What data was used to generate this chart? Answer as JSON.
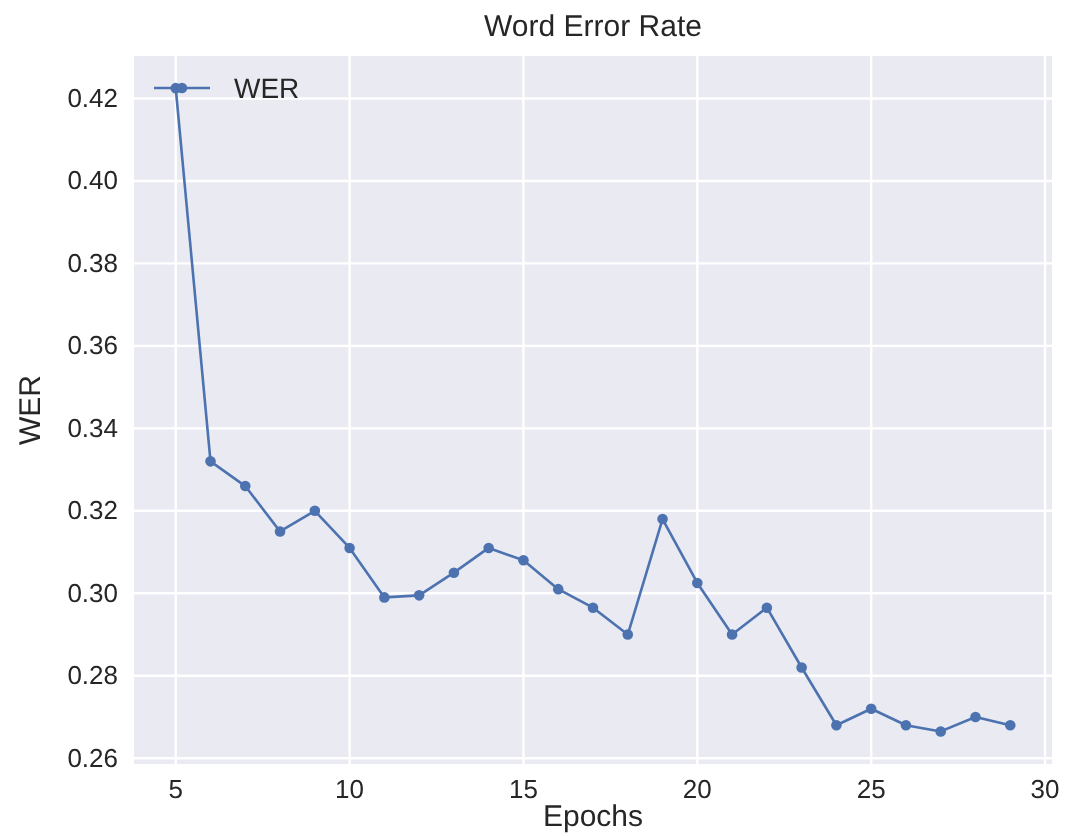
{
  "chart_data": {
    "type": "line",
    "title": "Word Error Rate",
    "xlabel": "Epochs",
    "ylabel": "WER",
    "x": [
      5,
      6,
      7,
      8,
      9,
      10,
      11,
      12,
      13,
      14,
      15,
      16,
      17,
      18,
      19,
      20,
      21,
      22,
      23,
      24,
      25,
      26,
      27,
      28,
      29
    ],
    "series": [
      {
        "name": "WER",
        "color": "#4c72b0",
        "values": [
          0.4225,
          0.332,
          0.326,
          0.315,
          0.32,
          0.311,
          0.299,
          0.2995,
          0.305,
          0.311,
          0.308,
          0.301,
          0.2965,
          0.29,
          0.318,
          0.3025,
          0.29,
          0.2965,
          0.282,
          0.268,
          0.272,
          0.268,
          0.2665,
          0.27,
          0.268
        ]
      }
    ],
    "xlim": [
      3.8,
      30.2
    ],
    "xticks": [
      5,
      10,
      15,
      20,
      25,
      30
    ],
    "ylim": [
      0.2586,
      0.4303
    ],
    "yticks": [
      {
        "value": 0.26,
        "label": "0.26"
      },
      {
        "value": 0.28,
        "label": "0.28"
      },
      {
        "value": 0.3,
        "label": "0.30"
      },
      {
        "value": 0.32,
        "label": "0.32"
      },
      {
        "value": 0.34,
        "label": "0.34"
      },
      {
        "value": 0.36,
        "label": "0.36"
      },
      {
        "value": 0.38,
        "label": "0.38"
      },
      {
        "value": 0.4,
        "label": "0.40"
      },
      {
        "value": 0.42,
        "label": "0.42"
      }
    ],
    "grid": true,
    "legend": "top left",
    "marker": "circle",
    "line_style": "solid"
  }
}
